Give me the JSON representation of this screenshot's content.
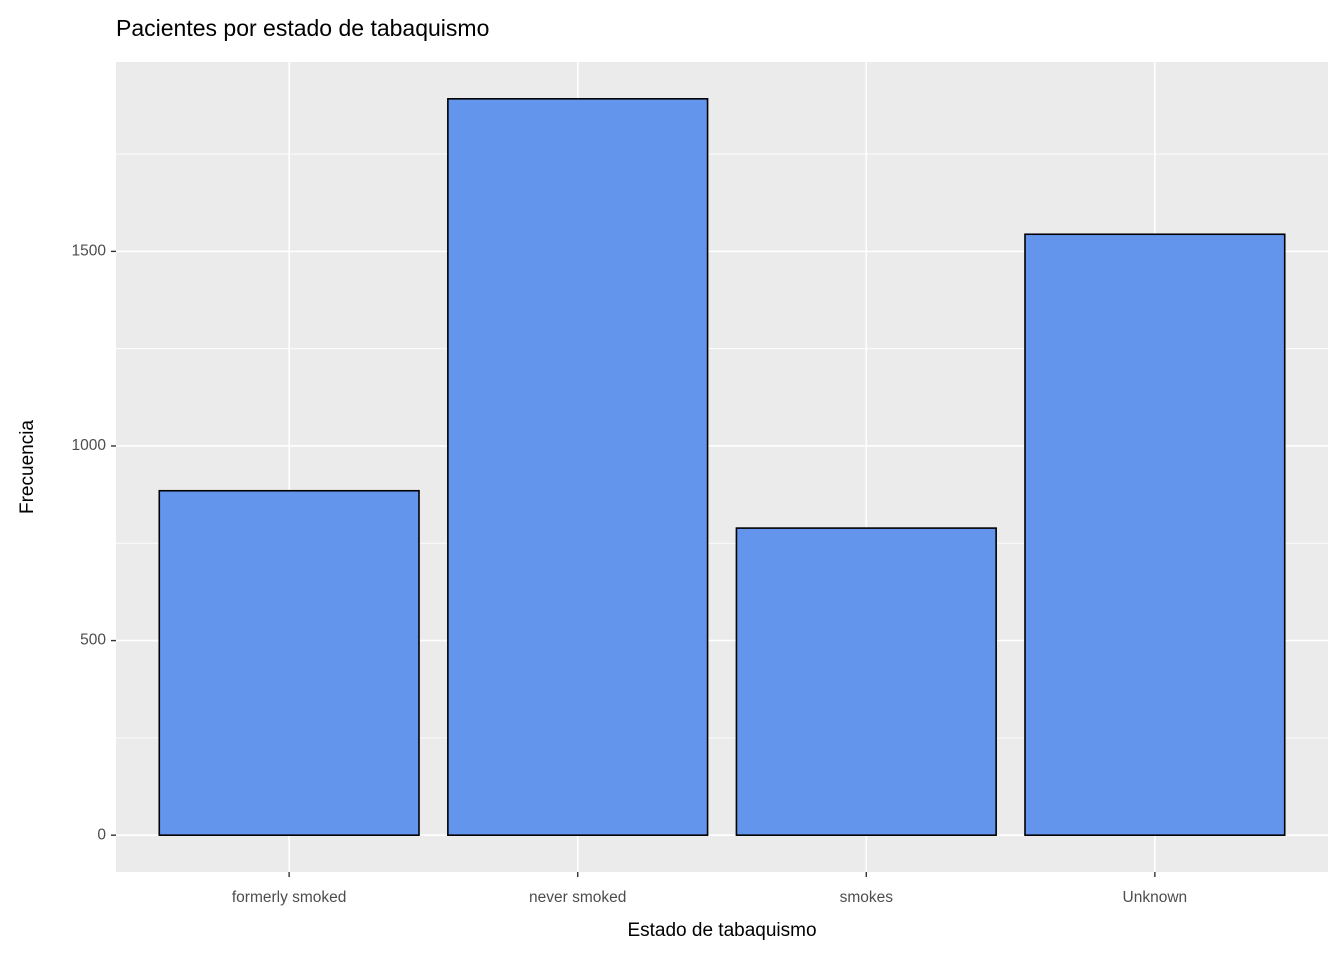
{
  "chart_data": {
    "type": "bar",
    "title": "Pacientes por estado de tabaquismo",
    "x_label": "Estado de tabaquismo",
    "y_label": "Frecuencia",
    "categories": [
      "formerly smoked",
      "never smoked",
      "smokes",
      "Unknown"
    ],
    "values": [
      885,
      1892,
      789,
      1544
    ],
    "color": "#6495ed",
    "edge_color": "#000000",
    "ylim": [
      -94.6,
      1986.6
    ],
    "yticks": [
      0,
      500,
      1000,
      1500
    ],
    "minor_yticks": [
      250,
      750,
      1250,
      1750
    ],
    "grid": true
  }
}
